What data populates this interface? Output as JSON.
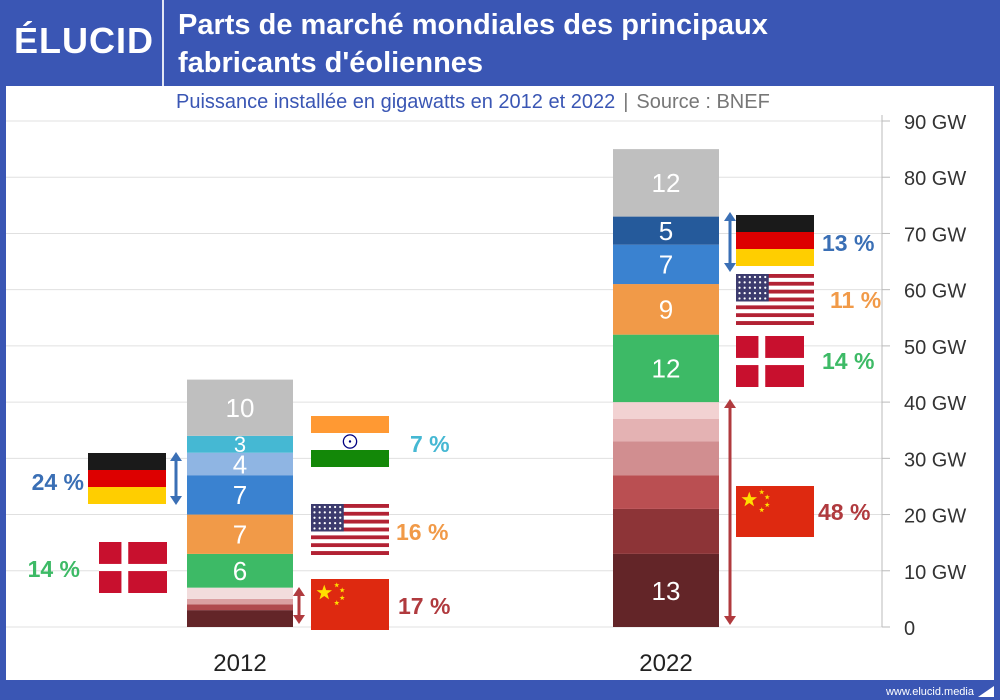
{
  "header": {
    "logo": "ÉLUCID",
    "title_line1": "Parts de marché mondiales des principaux",
    "title_line2": "fabricants d'éoliennes"
  },
  "subtitle": "Puissance installée en gigawatts en 2012 et 2022",
  "subtitle_separator": "|",
  "source": "Source : BNEF",
  "footer": "www.elucid.media",
  "chart_data": {
    "type": "bar",
    "stacked": true,
    "categories": [
      "2012",
      "2022"
    ],
    "y_unit": "GW",
    "ylim": [
      0,
      90
    ],
    "yticks": [
      0,
      10,
      20,
      30,
      40,
      50,
      60,
      70,
      80,
      90
    ],
    "ytick_labels": [
      "0",
      "10 GW",
      "20 GW",
      "30 GW",
      "40 GW",
      "50 GW",
      "60 GW",
      "70 GW",
      "80 GW",
      "90 GW"
    ],
    "grid": true,
    "y_axis_position": "right",
    "stacks": [
      {
        "category": "2012",
        "segments": [
          {
            "value": 3,
            "color": "#632528",
            "label": ""
          },
          {
            "value": 1,
            "color": "#b04a4e",
            "label": ""
          },
          {
            "value": 1,
            "color": "#dba0a2",
            "label": ""
          },
          {
            "value": 2,
            "color": "#f2dcdc",
            "label": ""
          },
          {
            "value": 6,
            "color": "#3dba66",
            "label": "6"
          },
          {
            "value": 7,
            "color": "#f19a48",
            "label": "7"
          },
          {
            "value": 7,
            "color": "#3a82d0",
            "label": "7"
          },
          {
            "value": 4,
            "color": "#8fb5e3",
            "label": "4"
          },
          {
            "value": 3,
            "color": "#45b8d3",
            "label": "3"
          },
          {
            "value": 10,
            "color": "#bfbfbf",
            "label": "10"
          }
        ]
      },
      {
        "category": "2022",
        "segments": [
          {
            "value": 13,
            "color": "#632528",
            "label": "13"
          },
          {
            "value": 8,
            "color": "#8d3437",
            "label": ""
          },
          {
            "value": 6,
            "color": "#ba4f52",
            "label": ""
          },
          {
            "value": 6,
            "color": "#d18e90",
            "label": ""
          },
          {
            "value": 4,
            "color": "#e4b2b3",
            "label": ""
          },
          {
            "value": 3,
            "color": "#f2d2d2",
            "label": ""
          },
          {
            "value": 12,
            "color": "#3dba66",
            "label": "12"
          },
          {
            "value": 9,
            "color": "#f19a48",
            "label": "9"
          },
          {
            "value": 7,
            "color": "#3a82d0",
            "label": "7"
          },
          {
            "value": 5,
            "color": "#255a9b",
            "label": "5"
          },
          {
            "value": 12,
            "color": "#bfbfbf",
            "label": "12"
          }
        ]
      }
    ],
    "annotations": [
      {
        "category": "2012",
        "country": "Inde",
        "flag": "india-flag",
        "share": "7 %",
        "color": "#45b8d3"
      },
      {
        "category": "2012",
        "country": "Allemagne",
        "flag": "germany-flag",
        "share": "24 %",
        "color": "#3a6fb5"
      },
      {
        "category": "2012",
        "country": "États-Unis",
        "flag": "usa-flag",
        "share": "16 %",
        "color": "#f19a48"
      },
      {
        "category": "2012",
        "country": "Danemark",
        "flag": "denmark-flag",
        "share": "14 %",
        "color": "#3dba66"
      },
      {
        "category": "2012",
        "country": "Chine",
        "flag": "china-flag",
        "share": "17 %",
        "color": "#b03a3e"
      },
      {
        "category": "2022",
        "country": "Allemagne",
        "flag": "germany-flag",
        "share": "13 %",
        "color": "#3a6fb5"
      },
      {
        "category": "2022",
        "country": "États-Unis",
        "flag": "usa-flag",
        "share": "11 %",
        "color": "#f19a48"
      },
      {
        "category": "2022",
        "country": "Danemark",
        "flag": "denmark-flag",
        "share": "14 %",
        "color": "#3dba66"
      },
      {
        "category": "2022",
        "country": "Chine",
        "flag": "china-flag",
        "share": "48 %",
        "color": "#b03a3e"
      }
    ]
  }
}
